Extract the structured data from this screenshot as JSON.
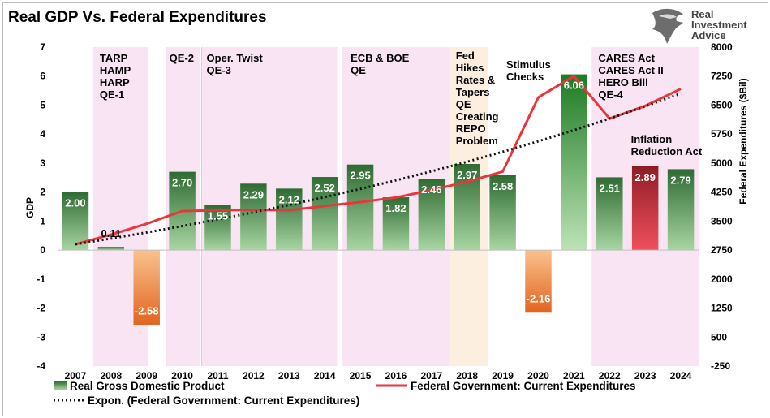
{
  "title": "Real GDP Vs. Federal Expenditures",
  "logo": {
    "lines": [
      "Real",
      "Investment",
      "Advice"
    ],
    "icon": "eagle-head-icon"
  },
  "colors": {
    "shade_pink": "#f8e4f3",
    "shade_orange": "#fdefe0",
    "bar_green_top": "#2e6b32",
    "bar_green_bottom": "#a8d5a3",
    "bar_bright_top": "#1e7a22",
    "bar_bright_bottom": "#bde3b6",
    "bar_orange_top": "#f9c28e",
    "bar_orange_bottom": "#e2641f",
    "bar_red_top": "#8e1c24",
    "bar_red_bottom": "#f0505e",
    "line_red": "#e8363c",
    "trend_dotted": "#111111"
  },
  "chart_data": {
    "type": "bar",
    "categories": [
      "2007",
      "2008",
      "2009",
      "2010",
      "2011",
      "2012",
      "2013",
      "2014",
      "2015",
      "2016",
      "2017",
      "2018",
      "2019",
      "2020",
      "2021",
      "2022",
      "2023",
      "2024"
    ],
    "series": [
      {
        "name": "Real Gross Domestic Product",
        "axis": "left",
        "type": "bar",
        "values": [
          2.0,
          0.11,
          -2.58,
          2.7,
          1.55,
          2.29,
          2.12,
          2.52,
          2.95,
          1.82,
          2.46,
          2.97,
          2.58,
          -2.16,
          6.06,
          2.51,
          2.89,
          2.79
        ],
        "labels": [
          "2.00",
          "0.11",
          "-2.58",
          "2.70",
          "1.55",
          "2.29",
          "2.12",
          "2.52",
          "2.95",
          "1.82",
          "2.46",
          "2.97",
          "2.58",
          "-2.16",
          "6.06",
          "2.51",
          "2.89",
          "2.79"
        ]
      },
      {
        "name": "Federal Government: Current Expenditures",
        "axis": "right",
        "type": "line",
        "values": [
          2900,
          3150,
          3430,
          3760,
          3780,
          3790,
          3780,
          3890,
          3990,
          4110,
          4300,
          4520,
          4780,
          6700,
          7250,
          6150,
          6480,
          6920
        ]
      },
      {
        "name": "Expon. (Federal Government: Current Expenditures)",
        "axis": "right",
        "type": "trendline",
        "start": 2900,
        "end": 6800
      }
    ],
    "left_axis": {
      "label": "GDP",
      "min": -4,
      "max": 7,
      "ticks": [
        "-4",
        "-3",
        "-2",
        "-1",
        "0",
        "1",
        "2",
        "3",
        "4",
        "5",
        "6",
        "7"
      ]
    },
    "right_axis": {
      "label": "Federal Expenditures ($Bil)",
      "min": -250,
      "max": 8000,
      "ticks": [
        "-250",
        "500",
        "1250",
        "2000",
        "2750",
        "3500",
        "4250",
        "5000",
        "5750",
        "6500",
        "7250",
        "8000"
      ]
    },
    "shaded_periods": [
      {
        "from": "2008",
        "to": "2010",
        "color": "pink",
        "annotation": [
          "TARP",
          "HAMP",
          "HARP",
          "QE-1"
        ]
      },
      {
        "from": "2010",
        "to": "2011",
        "color": "pink",
        "annotation": [
          "QE-2"
        ]
      },
      {
        "from": "2011",
        "to": "2014",
        "color": "pink",
        "annotation": [
          "Oper. Twist",
          "QE-3"
        ]
      },
      {
        "from": "2015",
        "to": "2017",
        "color": "pink",
        "annotation": [
          "ECB & BOE",
          "QE"
        ]
      },
      {
        "from": "2018",
        "to": "2019",
        "color": "orange",
        "annotation": [
          "Fed",
          "Hikes",
          "Rates &",
          "Tapers",
          "QE",
          "Creating",
          "REPO",
          "Problem"
        ]
      },
      {
        "from": "2022",
        "to": "2024",
        "color": "pink",
        "annotation": [
          "CARES Act",
          "CARES Act II",
          "HERO Bill",
          "QE-4"
        ]
      }
    ],
    "annotations": [
      {
        "lines": [
          "Stimulus",
          "Checks"
        ]
      },
      {
        "lines": [
          "Inflation",
          "Reduction Act"
        ]
      }
    ],
    "legend": {
      "placement": "bottom",
      "items": [
        "Real Gross Domestic Product",
        "Federal Government: Current Expenditures",
        "Expon. (Federal Government: Current Expenditures)"
      ]
    },
    "grid": false
  }
}
